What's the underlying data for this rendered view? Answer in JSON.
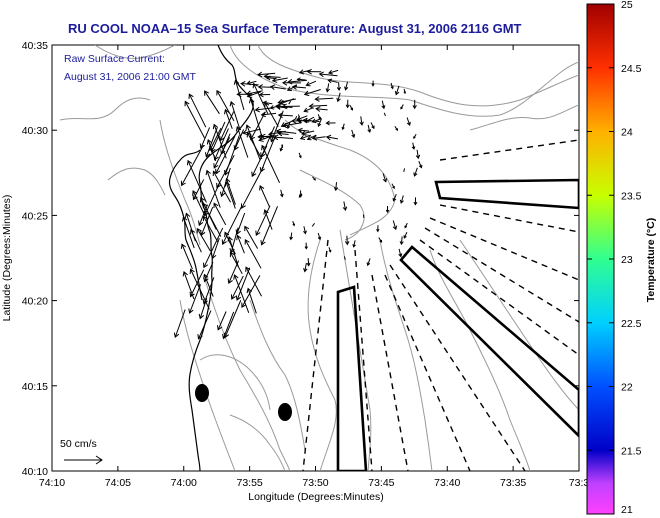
{
  "title": "RU COOL  NOAA–15  Sea Surface Temperature:  August 31, 2006 2116 GMT",
  "map": {
    "annotation_line1": "Raw Surface Current:",
    "annotation_line2": "August 31, 2006 21:00 GMT",
    "scale_label": "50 cm/s",
    "xlabel": "Longitude (Degrees:Minutes)",
    "ylabel": "Latitude (Degrees:Minutes)",
    "x_ticks": [
      "74:10",
      "74:05",
      "74:00",
      "73:55",
      "73:50",
      "73:45",
      "73:40",
      "73:35",
      "73:3"
    ],
    "y_ticks": [
      "40:35",
      "40:30",
      "40:25",
      "40:20",
      "40:15",
      "40:10"
    ],
    "colors": {
      "title": "#1c1c9c",
      "annotation": "#1c1c9c",
      "coast": "#000000",
      "bathymetry": "#9a9a9a"
    }
  },
  "colorbar": {
    "label": "Temperature (°C)",
    "ticks": [
      "25",
      "24.5",
      "24",
      "23.5",
      "23",
      "22.5",
      "22",
      "21.5",
      "21"
    ],
    "min": 21,
    "max": 25,
    "colormap": "jet"
  }
}
